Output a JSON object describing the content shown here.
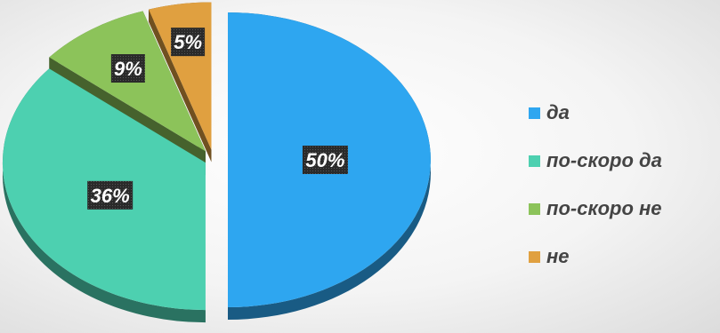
{
  "chart_data": {
    "type": "pie",
    "categories": [
      "да",
      "по-скоро да",
      "по-скоро не",
      "не"
    ],
    "values": [
      50,
      36,
      9,
      5
    ],
    "labels": [
      "50%",
      "36%",
      "9%",
      "5%"
    ],
    "colors": [
      "#2ea6f0",
      "#4dd0b0",
      "#8cc35a",
      "#e0a040"
    ],
    "legend_position": "right",
    "three_d": true,
    "exploded": true
  }
}
